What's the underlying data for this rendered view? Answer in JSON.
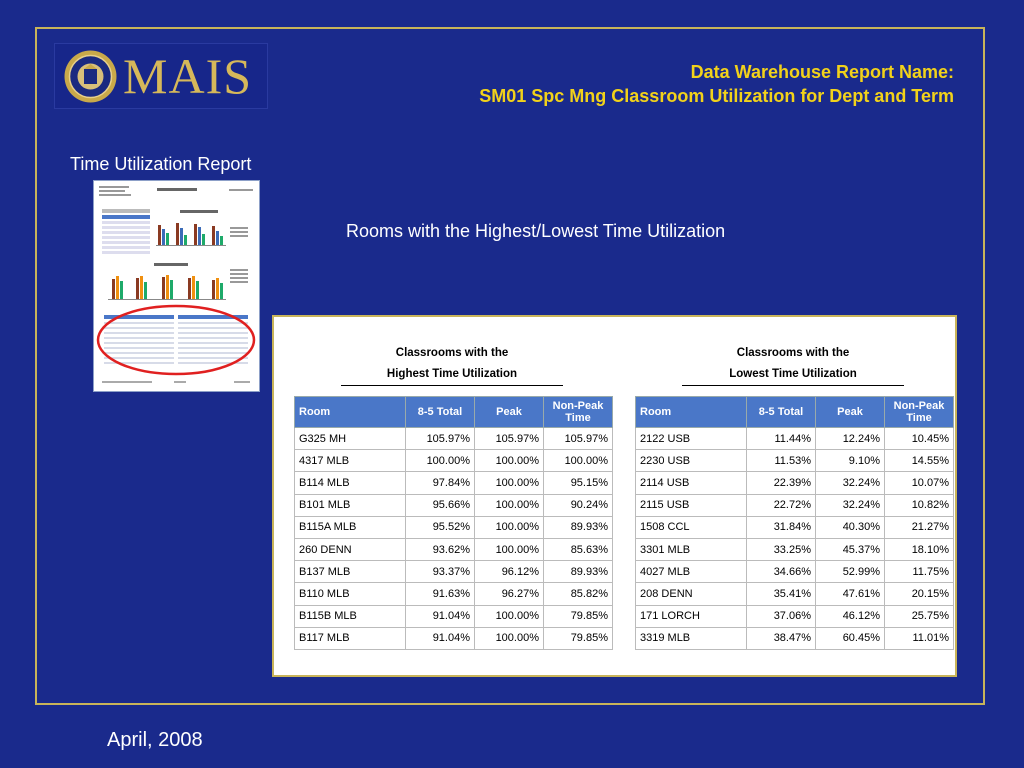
{
  "logo": {
    "text": "MAIS"
  },
  "header": {
    "line1": "Data Warehouse Report Name:",
    "line2": "SM01 Spc Mng Classroom Utilization for Dept and Term"
  },
  "subtitle": "Time Utilization Report",
  "caption": "Rooms with the Highest/Lowest Time Utilization",
  "footer": {
    "date": "April, 2008"
  },
  "colors": {
    "background": "#1a2a8c",
    "accent": "#f2d21a",
    "border": "#c8b45a",
    "table_header": "#4a77c8",
    "highlight_circle": "#e02020"
  },
  "highest": {
    "title_l1": "Classrooms with the",
    "title_l2": "Highest Time Utilization",
    "columns": [
      "Room",
      "8-5 Total",
      "Peak",
      "Non-Peak Time"
    ],
    "rows": [
      [
        "G325 MH",
        "105.97%",
        "105.97%",
        "105.97%"
      ],
      [
        "4317 MLB",
        "100.00%",
        "100.00%",
        "100.00%"
      ],
      [
        "B114 MLB",
        "97.84%",
        "100.00%",
        "95.15%"
      ],
      [
        "B101 MLB",
        "95.66%",
        "100.00%",
        "90.24%"
      ],
      [
        "B115A MLB",
        "95.52%",
        "100.00%",
        "89.93%"
      ],
      [
        "260 DENN",
        "93.62%",
        "100.00%",
        "85.63%"
      ],
      [
        "B137 MLB",
        "93.37%",
        "96.12%",
        "89.93%"
      ],
      [
        "B110 MLB",
        "91.63%",
        "96.27%",
        "85.82%"
      ],
      [
        "B115B MLB",
        "91.04%",
        "100.00%",
        "79.85%"
      ],
      [
        "B117 MLB",
        "91.04%",
        "100.00%",
        "79.85%"
      ]
    ]
  },
  "lowest": {
    "title_l1": "Classrooms with the",
    "title_l2": "Lowest Time Utilization",
    "columns": [
      "Room",
      "8-5 Total",
      "Peak",
      "Non-Peak Time"
    ],
    "rows": [
      [
        "2122 USB",
        "11.44%",
        "12.24%",
        "10.45%"
      ],
      [
        "2230 USB",
        "11.53%",
        "9.10%",
        "14.55%"
      ],
      [
        "2114 USB",
        "22.39%",
        "32.24%",
        "10.07%"
      ],
      [
        "2115 USB",
        "22.72%",
        "32.24%",
        "10.82%"
      ],
      [
        "1508 CCL",
        "31.84%",
        "40.30%",
        "21.27%"
      ],
      [
        "3301 MLB",
        "33.25%",
        "45.37%",
        "18.10%"
      ],
      [
        "4027 MLB",
        "34.66%",
        "52.99%",
        "11.75%"
      ],
      [
        "208 DENN",
        "35.41%",
        "47.61%",
        "20.15%"
      ],
      [
        "171 LORCH",
        "37.06%",
        "46.12%",
        "25.75%"
      ],
      [
        "3319 MLB",
        "38.47%",
        "60.45%",
        "11.01%"
      ]
    ]
  }
}
